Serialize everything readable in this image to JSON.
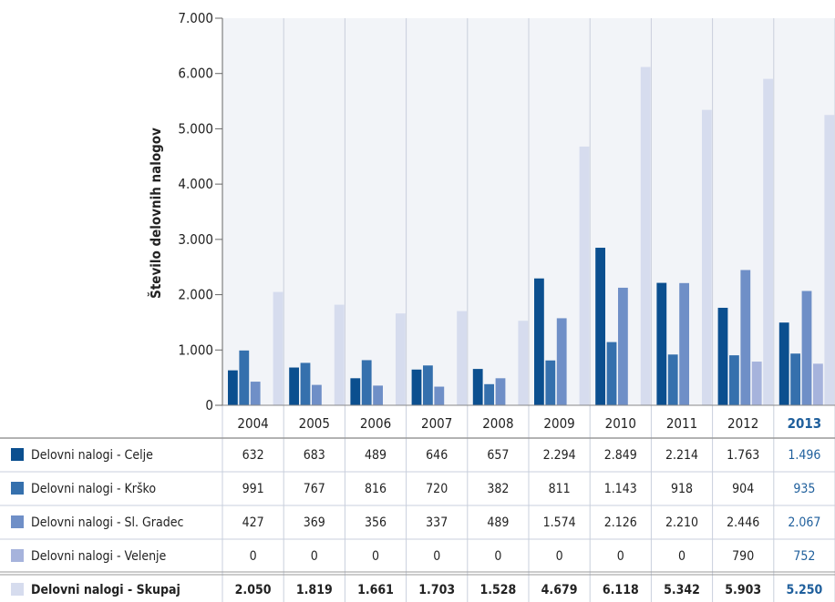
{
  "chart_data": {
    "type": "bar",
    "ylabel": "Število delovnih nalogov",
    "ylim": [
      0,
      7000
    ],
    "yticks": [
      "0",
      "1.000",
      "2.000",
      "3.000",
      "4.000",
      "5.000",
      "6.000",
      "7.000"
    ],
    "categories": [
      "2004",
      "2005",
      "2006",
      "2007",
      "2008",
      "2009",
      "2010",
      "2011",
      "2012",
      "2013"
    ],
    "highlight_category": "2013",
    "grid": "vertical separators",
    "legend": "table-below",
    "series": [
      {
        "name": "Delovni nalogi - Celje",
        "color": "#0b4f8f",
        "values": [
          632,
          683,
          489,
          646,
          657,
          2294,
          2849,
          2214,
          1763,
          1496
        ],
        "labels": [
          "632",
          "683",
          "489",
          "646",
          "657",
          "2.294",
          "2.849",
          "2.214",
          "1.763",
          "1.496"
        ]
      },
      {
        "name": "Delovni nalogi - Krško",
        "color": "#3570ad",
        "values": [
          991,
          767,
          816,
          720,
          382,
          811,
          1143,
          918,
          904,
          935
        ],
        "labels": [
          "991",
          "767",
          "816",
          "720",
          "382",
          "811",
          "1.143",
          "918",
          "904",
          "935"
        ]
      },
      {
        "name": "Delovni nalogi - Sl. Gradec",
        "color": "#6f8fc7",
        "values": [
          427,
          369,
          356,
          337,
          489,
          1574,
          2126,
          2210,
          2446,
          2067
        ],
        "labels": [
          "427",
          "369",
          "356",
          "337",
          "489",
          "1.574",
          "2.126",
          "2.210",
          "2.446",
          "2.067"
        ]
      },
      {
        "name": "Delovni nalogi - Velenje",
        "color": "#a6b3dc",
        "values": [
          0,
          0,
          0,
          0,
          0,
          0,
          0,
          0,
          790,
          752
        ],
        "labels": [
          "0",
          "0",
          "0",
          "0",
          "0",
          "0",
          "0",
          "0",
          "790",
          "752"
        ]
      },
      {
        "name": "Delovni nalogi - Skupaj",
        "color": "#d6dcee",
        "bold": true,
        "values": [
          2050,
          1819,
          1661,
          1703,
          1528,
          4679,
          6118,
          5342,
          5903,
          5250
        ],
        "labels": [
          "2.050",
          "1.819",
          "1.661",
          "1.703",
          "1.528",
          "4.679",
          "6.118",
          "5.342",
          "5.903",
          "5.250"
        ]
      }
    ]
  }
}
